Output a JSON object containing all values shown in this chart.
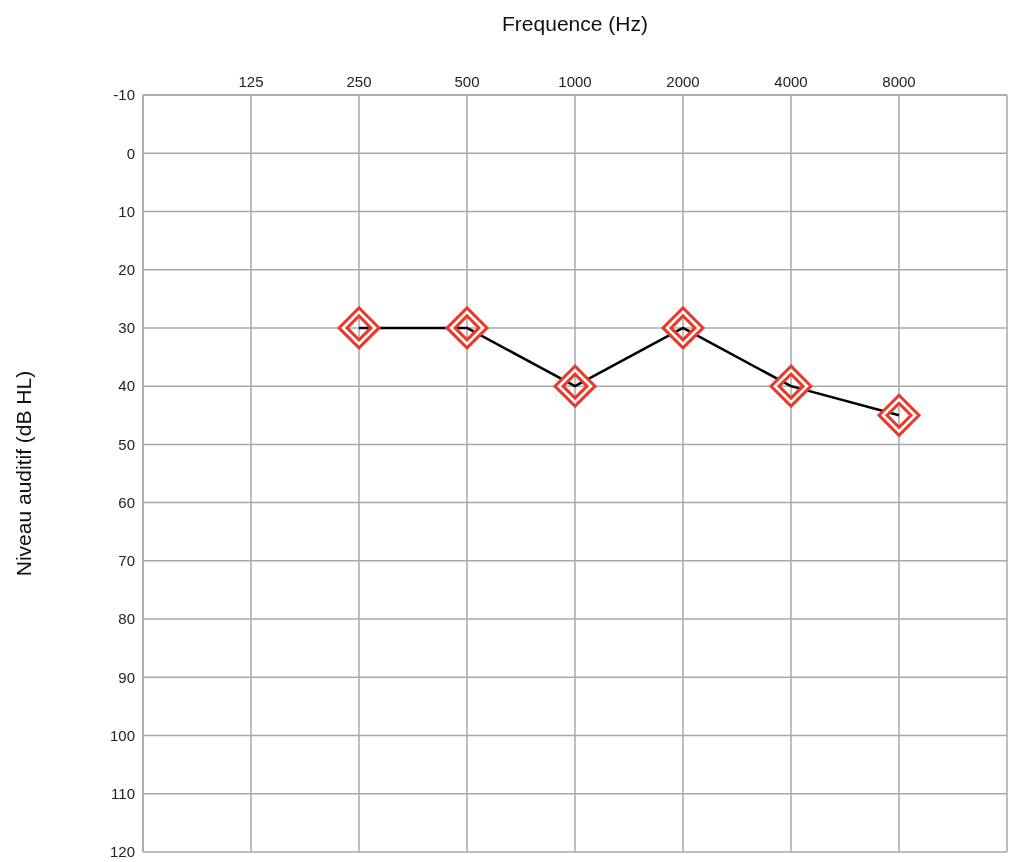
{
  "chart_data": {
    "type": "line",
    "xlabel": "Frequence (Hz)",
    "ylabel": "Niveau auditif (dB HL)",
    "categories": [
      "125",
      "250",
      "500",
      "1000",
      "2000",
      "4000",
      "8000"
    ],
    "series": [
      {
        "color": "#000000",
        "colors": [
          "#e8392b",
          "#e8392b",
          "#e8392b",
          "#e8392b",
          "#e8392b",
          "#e8392b",
          "#e8392b"
        ],
        "values": [
          null,
          30,
          30,
          40,
          30,
          40,
          45
        ]
      }
    ],
    "ylim": [
      120,
      -10
    ],
    "yticks": [
      -10,
      0,
      10,
      20,
      30,
      40,
      50,
      60,
      70,
      80,
      90,
      100,
      110,
      120
    ],
    "marker": "diamond",
    "grid": true
  }
}
